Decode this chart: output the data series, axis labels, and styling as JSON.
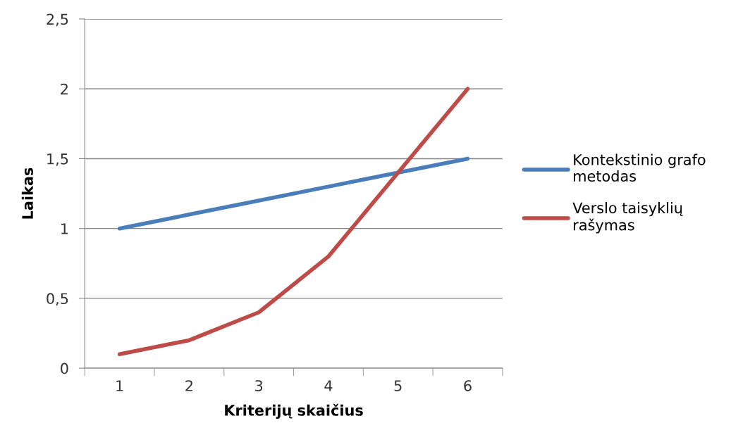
{
  "chart_data": {
    "type": "line",
    "xlabel": "Kriterijų skaičius",
    "ylabel": "Laikas",
    "categories": [
      "1",
      "2",
      "3",
      "4",
      "5",
      "6"
    ],
    "series": [
      {
        "name": "Kontekstinio grafo\nmetodas",
        "color": "#4a7ebb",
        "values": [
          1.0,
          1.1,
          1.2,
          1.3,
          1.4,
          1.5
        ]
      },
      {
        "name": "Verslo taisyklių\nrašymas",
        "color": "#be4b48",
        "values": [
          0.1,
          0.2,
          0.4,
          0.8,
          1.4,
          2.0
        ]
      }
    ],
    "ylim": [
      0,
      2.5
    ],
    "yticks": [
      0,
      {
        "value": 0.5,
        "label": "0,5"
      },
      1,
      {
        "value": 1.5,
        "label": "1,5"
      },
      2,
      {
        "value": 2.5,
        "label": "2,5"
      }
    ],
    "grid": "y",
    "legend": "right",
    "marker": "none",
    "line_style": "solid"
  }
}
